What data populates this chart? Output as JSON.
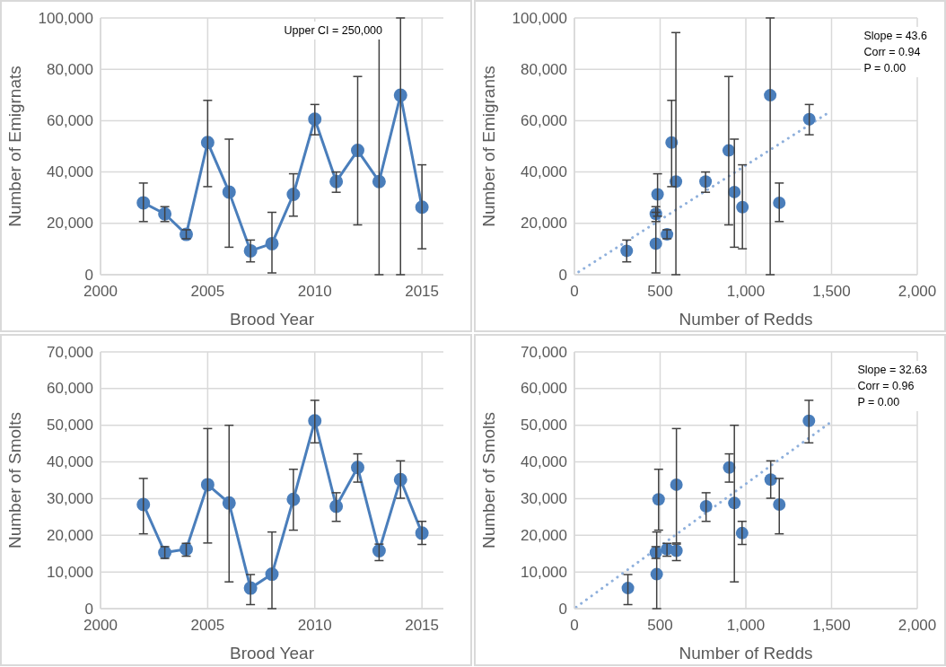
{
  "chart_data": [
    {
      "type": "line",
      "xlabel": "Brood Year",
      "ylabel": "Number of Emigrnats",
      "x": [
        2002,
        2003,
        2004,
        2005,
        2006,
        2007,
        2008,
        2009,
        2010,
        2011,
        2012,
        2013,
        2014,
        2015
      ],
      "series": [
        {
          "color": "#4a7ebb",
          "values": [
            28000,
            23700,
            15700,
            51500,
            32200,
            9300,
            12100,
            31300,
            60600,
            36300,
            48400,
            36300,
            69900,
            26300
          ],
          "errors": [
            [
              20700,
              35700
            ],
            [
              20700,
              26500
            ],
            [
              14000,
              17500
            ],
            [
              34300,
              67900
            ],
            [
              10700,
              52800
            ],
            [
              5000,
              13500
            ],
            [
              700,
              24300
            ],
            [
              22800,
              39300
            ],
            [
              54500,
              66300
            ],
            [
              32100,
              40000
            ],
            [
              19400,
              77200
            ],
            [
              0,
              94300
            ],
            [
              0,
              100000
            ],
            [
              10100,
              42800
            ]
          ]
        }
      ],
      "xlim": [
        2000,
        2016
      ],
      "xticks": [
        2000,
        2005,
        2010,
        2015
      ],
      "ylim": [
        0,
        100000
      ],
      "yticks": [
        {
          "value": 0,
          "label": "0"
        },
        {
          "value": 20000,
          "label": "20,000"
        },
        {
          "value": 40000,
          "label": "40,000"
        },
        {
          "value": 60000,
          "label": "60,000"
        },
        {
          "value": 80000,
          "label": "80,000"
        },
        {
          "value": 100000,
          "label": "100,000"
        }
      ],
      "grid": true,
      "marker": "circle",
      "annotations": [
        "Upper CI = 250,000"
      ]
    },
    {
      "type": "scatter",
      "xlabel": "Number of Redds",
      "ylabel": "Number of Emigrants",
      "series": [
        {
          "type": "scatter",
          "color": "#4a7ebb",
          "x": [
            1195,
            475,
            540,
            567,
            933,
            305,
            475,
            485,
            1370,
            765,
            900,
            592,
            1142,
            980
          ],
          "values": [
            28000,
            23700,
            15700,
            51500,
            32200,
            9300,
            12100,
            31300,
            60600,
            36300,
            48400,
            36300,
            69900,
            26300
          ],
          "errors": [
            [
              20700,
              35700
            ],
            [
              20700,
              26500
            ],
            [
              14000,
              17500
            ],
            [
              34300,
              67900
            ],
            [
              10700,
              52800
            ],
            [
              5000,
              13500
            ],
            [
              700,
              24300
            ],
            [
              22800,
              39300
            ],
            [
              54500,
              66300
            ],
            [
              32100,
              40000
            ],
            [
              19400,
              77200
            ],
            [
              0,
              94300
            ],
            [
              0,
              100000
            ],
            [
              10100,
              42800
            ]
          ]
        },
        {
          "type": "line",
          "color": "#8fb0dc",
          "x": [
            25,
            1470
          ],
          "values": [
            1100,
            62600
          ],
          "line_style": "dotted",
          "marker": "none"
        }
      ],
      "xlim": [
        0,
        2000
      ],
      "xticks": [
        {
          "value": 0,
          "label": "0"
        },
        500,
        {
          "value": 1000,
          "label": "1,000"
        },
        {
          "value": 1500,
          "label": "1,500"
        },
        {
          "value": 2000,
          "label": "2,000"
        }
      ],
      "ylim": [
        0,
        100000
      ],
      "yticks": [
        {
          "value": 0,
          "label": "0"
        },
        {
          "value": 20000,
          "label": "20,000"
        },
        {
          "value": 40000,
          "label": "40,000"
        },
        {
          "value": 60000,
          "label": "60,000"
        },
        {
          "value": 80000,
          "label": "80,000"
        },
        {
          "value": 100000,
          "label": "100,000"
        }
      ],
      "grid": true,
      "marker": "circle",
      "annotations": [
        "Slope = 43.6",
        "Corr = 0.94",
        "P = 0.00"
      ]
    },
    {
      "type": "line",
      "xlabel": "Brood Year",
      "ylabel": "Number of Smolts",
      "x": [
        2002,
        2003,
        2004,
        2005,
        2006,
        2007,
        2008,
        2009,
        2010,
        2011,
        2012,
        2013,
        2014,
        2015
      ],
      "series": [
        {
          "color": "#4a7ebb",
          "values": [
            28400,
            15300,
            16200,
            33800,
            28800,
            5600,
            9400,
            29800,
            51200,
            27900,
            38500,
            15800,
            35200,
            20600
          ],
          "errors": [
            [
              20400,
              35500
            ],
            [
              13700,
              16900
            ],
            [
              14300,
              17800
            ],
            [
              17900,
              49100
            ],
            [
              7300,
              50000
            ],
            [
              1100,
              9300
            ],
            [
              0,
              20900
            ],
            [
              21400,
              38000
            ],
            [
              45200,
              56800
            ],
            [
              23800,
              31600
            ],
            [
              34500,
              42200
            ],
            [
              13100,
              17600
            ],
            [
              30100,
              40300
            ],
            [
              17500,
              23800
            ]
          ]
        }
      ],
      "xlim": [
        2000,
        2016
      ],
      "xticks": [
        2000,
        2005,
        2010,
        2015
      ],
      "ylim": [
        0,
        70000
      ],
      "yticks": [
        {
          "value": 0,
          "label": "0"
        },
        {
          "value": 10000,
          "label": "10,000"
        },
        {
          "value": 20000,
          "label": "20,000"
        },
        {
          "value": 30000,
          "label": "30,000"
        },
        {
          "value": 40000,
          "label": "40,000"
        },
        {
          "value": 50000,
          "label": "50,000"
        },
        {
          "value": 60000,
          "label": "60,000"
        },
        {
          "value": 70000,
          "label": "70,000"
        }
      ],
      "grid": true,
      "marker": "circle"
    },
    {
      "type": "scatter",
      "xlabel": "Number of Redds",
      "ylabel": "Number of Smolts",
      "series": [
        {
          "type": "scatter",
          "color": "#4a7ebb",
          "x": [
            1195,
            475,
            540,
            595,
            933,
            312,
            480,
            491,
            1368,
            768,
            903,
            595,
            1145,
            978
          ],
          "values": [
            28400,
            15300,
            16200,
            33800,
            28800,
            5600,
            9400,
            29800,
            51200,
            27900,
            38500,
            15800,
            35200,
            20600
          ],
          "errors": [
            [
              20400,
              35500
            ],
            [
              13700,
              16900
            ],
            [
              14300,
              17800
            ],
            [
              17900,
              49100
            ],
            [
              7300,
              50000
            ],
            [
              1100,
              9300
            ],
            [
              0,
              20900
            ],
            [
              21400,
              38000
            ],
            [
              45200,
              56800
            ],
            [
              23800,
              31600
            ],
            [
              34500,
              42200
            ],
            [
              13100,
              17600
            ],
            [
              30100,
              40300
            ],
            [
              17500,
              23800
            ]
          ]
        },
        {
          "type": "line",
          "color": "#8fb0dc",
          "x": [
            10,
            1500
          ],
          "values": [
            400,
            51000
          ],
          "line_style": "dotted",
          "marker": "none"
        }
      ],
      "xlim": [
        0,
        2000
      ],
      "xticks": [
        {
          "value": 0,
          "label": "0"
        },
        500,
        {
          "value": 1000,
          "label": "1,000"
        },
        {
          "value": 1500,
          "label": "1,500"
        },
        {
          "value": 2000,
          "label": "2,000"
        }
      ],
      "ylim": [
        0,
        70000
      ],
      "yticks": [
        {
          "value": 0,
          "label": "0"
        },
        {
          "value": 10000,
          "label": "10,000"
        },
        {
          "value": 20000,
          "label": "20,000"
        },
        {
          "value": 30000,
          "label": "30,000"
        },
        {
          "value": 40000,
          "label": "40,000"
        },
        {
          "value": 50000,
          "label": "50,000"
        },
        {
          "value": 60000,
          "label": "60,000"
        },
        {
          "value": 70000,
          "label": "70,000"
        }
      ],
      "grid": true,
      "marker": "circle",
      "annotations": [
        "Slope = 32.63",
        "Corr = 0.96",
        "P = 0.00"
      ]
    }
  ]
}
